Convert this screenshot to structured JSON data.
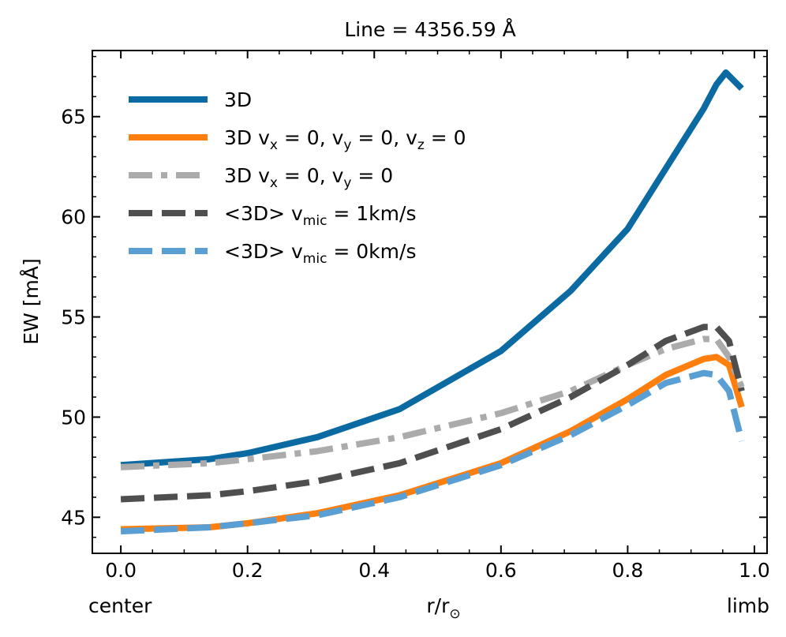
{
  "chart_data": {
    "type": "line",
    "title": "Line = 4356.59 Å",
    "xlabel": {
      "main": "r/r",
      "sub": "⊙"
    },
    "ylabel": "EW [mÅ]",
    "xlim": [
      -0.045,
      1.02
    ],
    "ylim": [
      43.2,
      68.3
    ],
    "xticks": [
      0.0,
      0.2,
      0.4,
      0.6,
      0.8,
      1.0
    ],
    "xtick_labels": [
      "0.0",
      "0.2",
      "0.4",
      "0.6",
      "0.8",
      "1.0"
    ],
    "yticks": [
      45,
      50,
      55,
      60,
      65
    ],
    "ytick_labels": [
      "45",
      "50",
      "55",
      "60",
      "65"
    ],
    "corner_labels": {
      "left": "center",
      "right": "limb"
    },
    "legend_position": "top-left",
    "series": [
      {
        "name": "3D",
        "legend": {
          "text": "3D",
          "parts": []
        },
        "color": "#0c6aa3",
        "dash": "solid",
        "x": [
          0.0,
          0.14,
          0.2,
          0.31,
          0.44,
          0.6,
          0.71,
          0.8,
          0.86,
          0.92,
          0.94,
          0.955,
          0.98
        ],
        "y": [
          47.6,
          47.9,
          48.2,
          49.0,
          50.4,
          53.3,
          56.3,
          59.4,
          62.4,
          65.4,
          66.6,
          67.2,
          66.4
        ]
      },
      {
        "name": "3D vx = 0, vy = 0, vz = 0",
        "legend": {
          "text": "3D ",
          "parts": [
            [
              "v",
              "x",
              " = 0, "
            ],
            [
              "v",
              "y",
              " = 0, "
            ],
            [
              "v",
              "z",
              " = 0"
            ]
          ]
        },
        "color": "#ff7f0e",
        "dash": "solid",
        "x": [
          0.0,
          0.14,
          0.2,
          0.31,
          0.44,
          0.6,
          0.71,
          0.8,
          0.86,
          0.92,
          0.94,
          0.96,
          0.98
        ],
        "y": [
          44.4,
          44.5,
          44.7,
          45.2,
          46.1,
          47.7,
          49.3,
          50.9,
          52.1,
          52.9,
          53.0,
          52.6,
          50.5
        ]
      },
      {
        "name": "3D vx = 0, vy = 0",
        "legend": {
          "text": "3D ",
          "parts": [
            [
              "v",
              "x",
              " = 0, "
            ],
            [
              "v",
              "y",
              " = 0"
            ]
          ]
        },
        "color": "#ababab",
        "dash": "dashdot",
        "x": [
          0.0,
          0.14,
          0.2,
          0.31,
          0.44,
          0.6,
          0.71,
          0.8,
          0.86,
          0.92,
          0.94,
          0.96,
          0.98
        ],
        "y": [
          47.5,
          47.7,
          47.9,
          48.3,
          49.0,
          50.2,
          51.3,
          52.6,
          53.4,
          53.9,
          53.9,
          53.0,
          51.5
        ]
      },
      {
        "name": "<3D> vmic = 1km/s",
        "legend": {
          "text": "<3D> ",
          "parts": [
            [
              "v",
              "mic",
              " = 1km/s"
            ]
          ]
        },
        "color": "#4f4f4f",
        "dash": "dashed",
        "x": [
          0.0,
          0.14,
          0.2,
          0.31,
          0.44,
          0.6,
          0.71,
          0.8,
          0.86,
          0.92,
          0.94,
          0.96,
          0.98
        ],
        "y": [
          45.9,
          46.1,
          46.3,
          46.8,
          47.7,
          49.4,
          51.0,
          52.6,
          53.8,
          54.5,
          54.5,
          53.8,
          51.3
        ]
      },
      {
        "name": "<3D> vmic = 0km/s",
        "legend": {
          "text": "<3D> ",
          "parts": [
            [
              "v",
              "mic",
              " = 0km/s"
            ]
          ]
        },
        "color": "#5a9fd4",
        "dash": "dashed",
        "x": [
          0.0,
          0.14,
          0.2,
          0.31,
          0.44,
          0.6,
          0.71,
          0.8,
          0.86,
          0.92,
          0.94,
          0.96,
          0.98
        ],
        "y": [
          44.3,
          44.5,
          44.7,
          45.1,
          46.0,
          47.6,
          49.1,
          50.6,
          51.7,
          52.2,
          52.1,
          51.3,
          48.8
        ]
      }
    ]
  }
}
